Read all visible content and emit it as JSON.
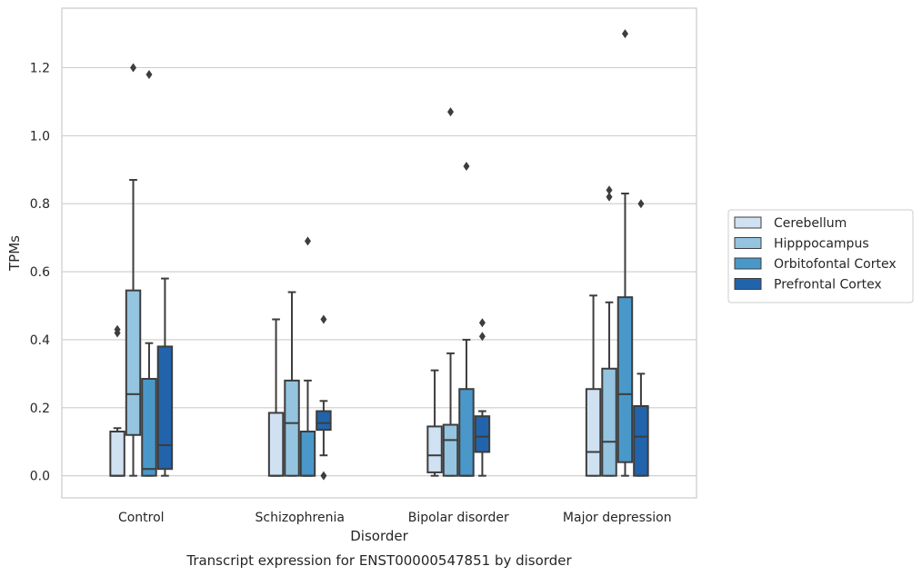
{
  "chart_data": {
    "type": "box",
    "title": "",
    "caption": "Transcript expression for ENST00000547851 by disorder",
    "xlabel": "Disorder",
    "ylabel": "TPMs",
    "categories": [
      "Control",
      "Schizophrenia",
      "Bipolar disorder",
      "Major depression"
    ],
    "ylim": [
      -0.065,
      1.375
    ],
    "yticks": [
      0.0,
      0.2,
      0.4,
      0.6,
      0.8,
      1.0,
      1.2
    ],
    "ytick_labels": [
      "0.0",
      "0.2",
      "0.4",
      "0.6",
      "0.8",
      "1.0",
      "1.2"
    ],
    "grid": "horizontal",
    "legend_position": "right",
    "series": [
      {
        "name": "Cerebellum",
        "color": "#d0e1f2",
        "boxes": [
          {
            "whislo": 0.0,
            "q1": 0.0,
            "med": 0.0,
            "q3": 0.13,
            "whishi": 0.14,
            "fliers": [
              0.42,
              0.43
            ]
          },
          {
            "whislo": 0.0,
            "q1": 0.0,
            "med": 0.0,
            "q3": 0.185,
            "whishi": 0.46,
            "fliers": []
          },
          {
            "whislo": 0.0,
            "q1": 0.01,
            "med": 0.06,
            "q3": 0.145,
            "whishi": 0.31,
            "fliers": []
          },
          {
            "whislo": 0.0,
            "q1": 0.0,
            "med": 0.07,
            "q3": 0.255,
            "whishi": 0.53,
            "fliers": []
          }
        ]
      },
      {
        "name": "Hipppocampus",
        "color": "#94c4df",
        "boxes": [
          {
            "whislo": 0.0,
            "q1": 0.12,
            "med": 0.24,
            "q3": 0.545,
            "whishi": 0.87,
            "fliers": [
              1.2
            ]
          },
          {
            "whislo": 0.0,
            "q1": 0.0,
            "med": 0.155,
            "q3": 0.28,
            "whishi": 0.54,
            "fliers": []
          },
          {
            "whislo": 0.0,
            "q1": 0.0,
            "med": 0.105,
            "q3": 0.15,
            "whishi": 0.36,
            "fliers": [
              1.07
            ]
          },
          {
            "whislo": 0.0,
            "q1": 0.0,
            "med": 0.1,
            "q3": 0.315,
            "whishi": 0.51,
            "fliers": [
              0.82,
              0.84
            ]
          }
        ]
      },
      {
        "name": "Orbitofontal Cortex",
        "color": "#4a98c9",
        "boxes": [
          {
            "whislo": 0.0,
            "q1": 0.0,
            "med": 0.02,
            "q3": 0.285,
            "whishi": 0.39,
            "fliers": [
              1.18
            ]
          },
          {
            "whislo": 0.0,
            "q1": 0.0,
            "med": 0.0,
            "q3": 0.13,
            "whishi": 0.28,
            "fliers": [
              0.69
            ]
          },
          {
            "whislo": 0.0,
            "q1": 0.0,
            "med": 0.0,
            "q3": 0.255,
            "whishi": 0.4,
            "fliers": [
              0.91
            ]
          },
          {
            "whislo": 0.0,
            "q1": 0.04,
            "med": 0.24,
            "q3": 0.525,
            "whishi": 0.83,
            "fliers": [
              1.3
            ]
          }
        ]
      },
      {
        "name": "Prefrontal Cortex",
        "color": "#2164ab",
        "boxes": [
          {
            "whislo": 0.0,
            "q1": 0.02,
            "med": 0.09,
            "q3": 0.38,
            "whishi": 0.58,
            "fliers": []
          },
          {
            "whislo": 0.06,
            "q1": 0.135,
            "med": 0.155,
            "q3": 0.19,
            "whishi": 0.22,
            "fliers": [
              0.0,
              0.46
            ]
          },
          {
            "whislo": 0.0,
            "q1": 0.07,
            "med": 0.115,
            "q3": 0.175,
            "whishi": 0.19,
            "fliers": [
              0.41,
              0.45
            ]
          },
          {
            "whislo": 0.0,
            "q1": 0.0,
            "med": 0.115,
            "q3": 0.205,
            "whishi": 0.3,
            "fliers": [
              0.8
            ]
          }
        ]
      }
    ]
  }
}
